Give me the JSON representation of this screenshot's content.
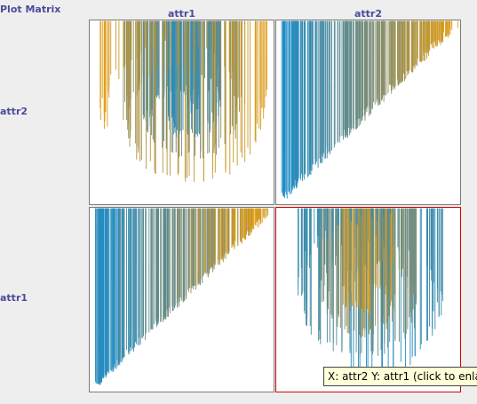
{
  "matrix": {
    "title": "Plot Matrix",
    "columns": [
      "attr1",
      "attr2"
    ],
    "rows": [
      "attr2",
      "attr1"
    ],
    "tooltip": "X: attr2 Y: attr1 (click to enla",
    "colors": {
      "low": "#1c8cc8",
      "high": "#e39d12",
      "border": "#7a7a7a",
      "selected_border": "#d40000"
    }
  },
  "chart_data": [
    {
      "type": "scatter",
      "x_attr": "attr1",
      "y_attr": "attr2",
      "shape": "two-arm spiral",
      "color_by": "position along spiral"
    },
    {
      "type": "scatter",
      "x_attr": "attr2",
      "y_attr": "attr2",
      "shape": "diagonal band",
      "color_by": "attr2"
    },
    {
      "type": "scatter",
      "x_attr": "attr1",
      "y_attr": "attr1",
      "shape": "diagonal band",
      "color_by": "attr1"
    },
    {
      "type": "scatter",
      "x_attr": "attr2",
      "y_attr": "attr1",
      "shape": "two-arm spiral (transposed)",
      "color_by": "position along spiral",
      "selected": true
    }
  ]
}
